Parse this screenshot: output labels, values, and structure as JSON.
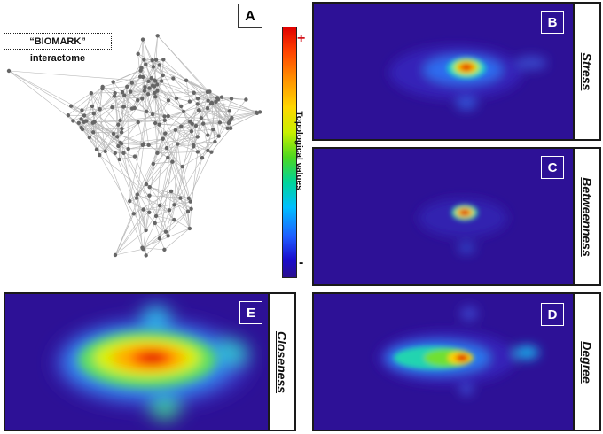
{
  "network_panel": {
    "letter": "A",
    "title": "“BIOMARK” interactome"
  },
  "colorbar": {
    "label": "Topological values",
    "max_symbol": "+",
    "min_symbol": "-",
    "colors": [
      "#e00000",
      "#ff8c00",
      "#ffd700",
      "#4cd820",
      "#00bfff",
      "#1a0ccc",
      "#2a0f8f"
    ]
  },
  "panels": {
    "stress": {
      "letter": "B",
      "name": "Stress"
    },
    "betweenness": {
      "letter": "C",
      "name": "Betweenness"
    },
    "degree": {
      "letter": "D",
      "name": "Degree"
    },
    "closeness": {
      "letter": "E",
      "name": "Closeness"
    }
  },
  "colors": {
    "node": "#666666",
    "edge": "#b8b8b8",
    "background": "#2d1196"
  }
}
